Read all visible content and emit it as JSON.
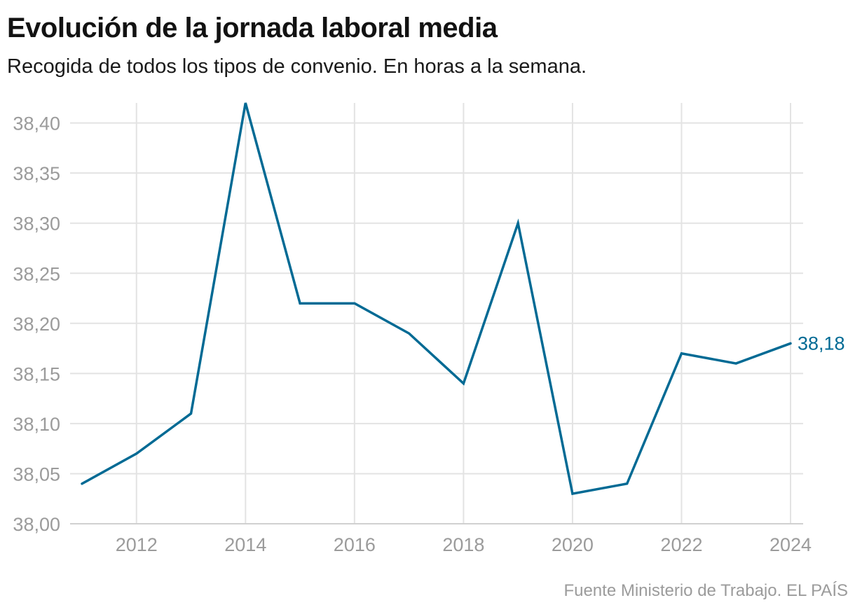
{
  "header": {
    "title": "Evolución de la jornada laboral media",
    "subtitle": "Recogida de todos los tipos de convenio. En horas a la semana."
  },
  "footer": {
    "source": "Fuente Ministerio de Trabajo. EL PAÍS"
  },
  "chart_data": {
    "type": "line",
    "title": "Evolución de la jornada laboral media",
    "subtitle": "Recogida de todos los tipos de convenio. En horas a la semana.",
    "xlabel": "",
    "ylabel": "",
    "x": [
      2011,
      2012,
      2013,
      2014,
      2015,
      2016,
      2017,
      2018,
      2019,
      2020,
      2021,
      2022,
      2023,
      2024
    ],
    "series": [
      {
        "values": [
          38.04,
          38.07,
          38.11,
          38.42,
          38.22,
          38.22,
          38.19,
          38.14,
          38.3,
          38.03,
          38.04,
          38.17,
          38.16,
          38.18
        ],
        "color": "#006a94"
      }
    ],
    "xlim": [
      2011,
      2024
    ],
    "ylim": [
      38.0,
      38.42
    ],
    "x_ticks": [
      2012,
      2014,
      2016,
      2018,
      2020,
      2022,
      2024
    ],
    "x_tick_labels": [
      "2012",
      "2014",
      "2016",
      "2018",
      "2020",
      "2022",
      "2024"
    ],
    "y_ticks": [
      38.0,
      38.05,
      38.1,
      38.15,
      38.2,
      38.25,
      38.3,
      38.35,
      38.4
    ],
    "y_tick_labels": [
      "38,00",
      "38,05",
      "38,10",
      "38,15",
      "38,20",
      "38,25",
      "38,30",
      "38,35",
      "38,40"
    ],
    "annotations": [
      {
        "x": 2024,
        "y": 38.18,
        "text": "38,18"
      }
    ],
    "grid": true,
    "legend": "none"
  }
}
